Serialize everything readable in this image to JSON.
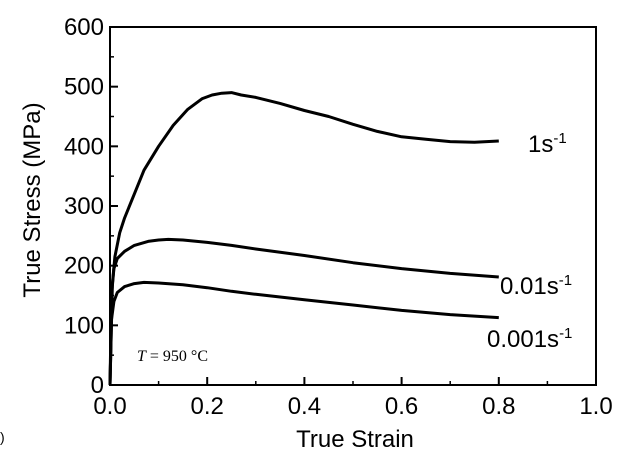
{
  "panel_marker": ")",
  "chart_data": {
    "type": "line",
    "title": "",
    "xlabel": "True Strain",
    "ylabel": "True Stress (MPa)",
    "xlim": [
      0.0,
      1.0
    ],
    "ylim": [
      0,
      600
    ],
    "x_ticks": [
      "0.0",
      "0.2",
      "0.4",
      "0.6",
      "0.8",
      "1.0"
    ],
    "y_ticks": [
      "0",
      "100",
      "200",
      "300",
      "400",
      "500",
      "600"
    ],
    "grid": false,
    "legend": "none (curves labelled directly at right end)",
    "annotation": {
      "var": "T",
      "text": " = 950 °C"
    },
    "series": [
      {
        "name": "1s-1",
        "label_base": "1s",
        "label_sup": "-1",
        "x": [
          0.0,
          0.005,
          0.01,
          0.02,
          0.03,
          0.05,
          0.07,
          0.1,
          0.13,
          0.16,
          0.19,
          0.21,
          0.23,
          0.25,
          0.27,
          0.3,
          0.35,
          0.4,
          0.45,
          0.5,
          0.55,
          0.6,
          0.65,
          0.7,
          0.75,
          0.8
        ],
        "y": [
          0,
          170,
          215,
          255,
          280,
          320,
          360,
          400,
          435,
          462,
          480,
          486,
          489,
          490,
          486,
          482,
          472,
          460,
          450,
          437,
          425,
          416,
          412,
          408,
          407,
          409
        ]
      },
      {
        "name": "0.01s-1",
        "label_base": "0.01s",
        "label_sup": "-1",
        "x": [
          0.0,
          0.003,
          0.008,
          0.015,
          0.03,
          0.05,
          0.08,
          0.1,
          0.12,
          0.15,
          0.2,
          0.25,
          0.3,
          0.4,
          0.5,
          0.6,
          0.7,
          0.8
        ],
        "y": [
          0,
          150,
          195,
          212,
          224,
          234,
          241,
          243,
          244,
          243,
          239,
          234,
          228,
          217,
          205,
          195,
          187,
          181
        ]
      },
      {
        "name": "0.001s-1",
        "label_base": "0.001s",
        "label_sup": "-1",
        "x": [
          0.0,
          0.003,
          0.008,
          0.015,
          0.03,
          0.05,
          0.07,
          0.1,
          0.15,
          0.2,
          0.25,
          0.3,
          0.4,
          0.5,
          0.6,
          0.7,
          0.8
        ],
        "y": [
          0,
          110,
          140,
          155,
          165,
          170,
          172,
          171,
          168,
          163,
          157,
          152,
          143,
          134,
          125,
          118,
          113
        ]
      }
    ]
  }
}
